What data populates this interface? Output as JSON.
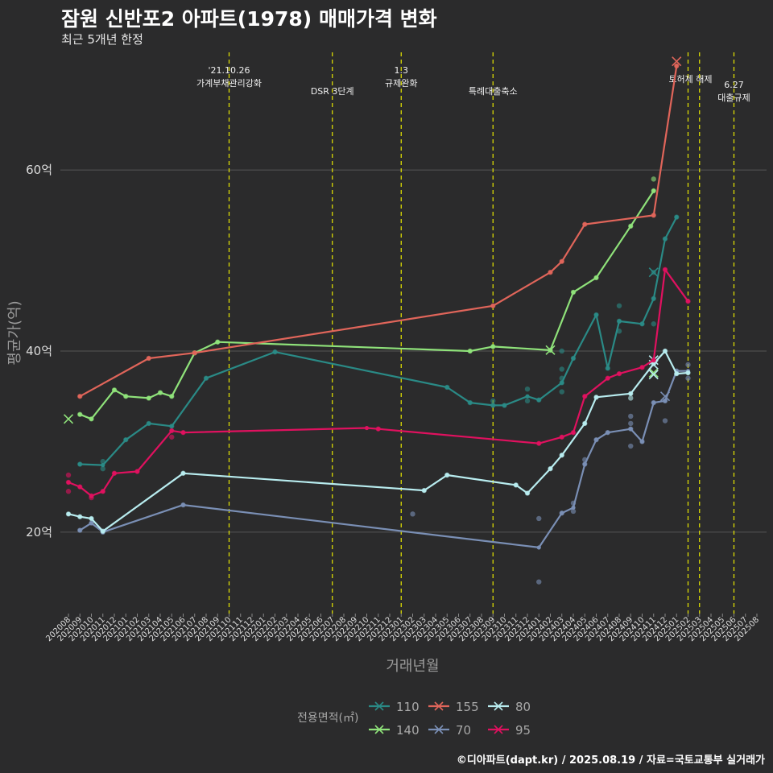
{
  "header": {
    "title": "잠원 신반포2 아파트(1978) 매매가격 변화",
    "subtitle": "최근 5개년 한정"
  },
  "footer": {
    "credit": "©디아파트(dapt.kr) / 2025.08.19 / 자료=국토교통부 실거래가"
  },
  "colors": {
    "background": "#2b2b2c",
    "grid": "#555555",
    "event_line": "#e8e800",
    "s110": "#2a8a86",
    "s140": "#8fe27a",
    "s155": "#e0655a",
    "s70": "#7a8fb5",
    "s80": "#b8ecef",
    "s95": "#e0115f"
  },
  "chart_data": {
    "type": "line",
    "title": "잠원 신반포2 아파트(1978) 매매가격 변화",
    "subtitle": "최근 5개년 한정",
    "xlabel": "거래년월",
    "ylabel": "평균가(억)",
    "categories": [
      "202008",
      "202009",
      "202010",
      "202011",
      "202012",
      "202101",
      "202102",
      "202103",
      "202104",
      "202105",
      "202106",
      "202107",
      "202108",
      "202109",
      "202110",
      "202111",
      "202112",
      "202201",
      "202202",
      "202203",
      "202204",
      "202205",
      "202206",
      "202207",
      "202208",
      "202209",
      "202210",
      "202211",
      "202212",
      "202301",
      "202302",
      "202303",
      "202304",
      "202305",
      "202306",
      "202307",
      "202308",
      "202309",
      "202310",
      "202311",
      "202312",
      "202401",
      "202402",
      "202403",
      "202404",
      "202405",
      "202406",
      "202407",
      "202408",
      "202409",
      "202410",
      "202411",
      "202412",
      "202501",
      "202502",
      "202503",
      "202504",
      "202505",
      "202506",
      "202507",
      "202508"
    ],
    "yticks": [
      {
        "value": 20,
        "label": "20억"
      },
      {
        "value": 40,
        "label": "40억"
      },
      {
        "value": 60,
        "label": "60억"
      }
    ],
    "ylim": [
      11,
      73
    ],
    "grid": true,
    "legend": {
      "title": "전용면적(㎡)",
      "position": "bottom"
    },
    "events": [
      {
        "x": "202110",
        "lines": [
          "'21.10.26",
          "가계부채관리강화"
        ]
      },
      {
        "x": "202207",
        "lines": [
          "DSR 3단계"
        ]
      },
      {
        "x": "202301",
        "lines": [
          "1.3",
          "규제완화"
        ]
      },
      {
        "x": "202309",
        "lines": [
          "특례대출축소"
        ]
      },
      {
        "x": "202502",
        "lines": [
          "토허제 해제"
        ]
      },
      {
        "x": "202503",
        "lines": []
      },
      {
        "x": "202506",
        "lines": [
          "6.27",
          "대출규제"
        ]
      }
    ],
    "series": [
      {
        "name": "110",
        "color_key": "s110",
        "values": [
          [
            "202009",
            27.5
          ],
          [
            "202011",
            27.4
          ],
          [
            "202101",
            30.2
          ],
          [
            "202103",
            32.0
          ],
          [
            "202105",
            31.7
          ],
          [
            "202108",
            37.0
          ],
          [
            "202202",
            39.9
          ],
          [
            "202305",
            36.0
          ],
          [
            "202307",
            34.3
          ],
          [
            "202309",
            34.0
          ],
          [
            "202310",
            34.0
          ],
          [
            "202312",
            35.0
          ],
          [
            "202401",
            34.6
          ],
          [
            "202403",
            36.5
          ],
          [
            "202404",
            39.2
          ],
          [
            "202406",
            44.0
          ],
          [
            "202407",
            38.1
          ],
          [
            "202408",
            43.3
          ],
          [
            "202410",
            43.0
          ],
          [
            "202411",
            45.8
          ],
          [
            "202412",
            52.4
          ],
          [
            "202501",
            54.8
          ]
        ],
        "points": [
          [
            "202009",
            27.5
          ],
          [
            "202011",
            27.0
          ],
          [
            "202011",
            27.8
          ],
          [
            "202101",
            30.2
          ],
          [
            "202103",
            32.0
          ],
          [
            "202105",
            31.7
          ],
          [
            "202108",
            37.0
          ],
          [
            "202202",
            39.9
          ],
          [
            "202305",
            36.0
          ],
          [
            "202307",
            34.3
          ],
          [
            "202309",
            34.0
          ],
          [
            "202309",
            34.5
          ],
          [
            "202310",
            34.0
          ],
          [
            "202312",
            34.5
          ],
          [
            "202312",
            35.8
          ],
          [
            "202401",
            34.6
          ],
          [
            "202403",
            36.5
          ],
          [
            "202403",
            38.0
          ],
          [
            "202403",
            40.0
          ],
          [
            "202403",
            35.5
          ],
          [
            "202403",
            37.0
          ],
          [
            "202404",
            39.2
          ],
          [
            "202406",
            44.0
          ],
          [
            "202407",
            38.1
          ],
          [
            "202408",
            43.3
          ],
          [
            "202408",
            42.2
          ],
          [
            "202408",
            45.0
          ],
          [
            "202410",
            43.0
          ],
          [
            "202411",
            45.8
          ],
          [
            "202411",
            48.7
          ],
          [
            "202411",
            43.0
          ],
          [
            "202412",
            52.4
          ],
          [
            "202501",
            54.8
          ]
        ],
        "markers_x": [
          [
            "202411",
            48.7
          ]
        ]
      },
      {
        "name": "140",
        "color_key": "s140",
        "values": [
          [
            "202009",
            33.0
          ],
          [
            "202010",
            32.5
          ],
          [
            "202012",
            35.7
          ],
          [
            "202101",
            35.0
          ],
          [
            "202103",
            34.8
          ],
          [
            "202104",
            35.4
          ],
          [
            "202105",
            35.0
          ],
          [
            "202107",
            39.8
          ],
          [
            "202109",
            41.0
          ],
          [
            "202307",
            40.0
          ],
          [
            "202309",
            40.5
          ],
          [
            "202402",
            40.1
          ],
          [
            "202404",
            46.5
          ],
          [
            "202406",
            48.1
          ],
          [
            "202409",
            53.8
          ],
          [
            "202411",
            57.7
          ]
        ],
        "points": [
          [
            "202009",
            33.0
          ],
          [
            "202010",
            32.5
          ],
          [
            "202012",
            35.7
          ],
          [
            "202101",
            35.0
          ],
          [
            "202103",
            34.8
          ],
          [
            "202104",
            35.4
          ],
          [
            "202105",
            35.0
          ],
          [
            "202107",
            39.8
          ],
          [
            "202109",
            41.0
          ],
          [
            "202307",
            40.0
          ],
          [
            "202309",
            40.5
          ],
          [
            "202402",
            40.1
          ],
          [
            "202404",
            46.5
          ],
          [
            "202406",
            48.1
          ],
          [
            "202409",
            53.8
          ],
          [
            "202411",
            57.7
          ],
          [
            "202411",
            59.0
          ]
        ],
        "markers_x": [
          [
            "202008",
            32.5
          ],
          [
            "202402",
            40.1
          ],
          [
            "202411",
            37.6
          ]
        ]
      },
      {
        "name": "155",
        "color_key": "s155",
        "values": [
          [
            "202009",
            35.0
          ],
          [
            "202103",
            39.2
          ],
          [
            "202107",
            39.8
          ],
          [
            "202309",
            45.0
          ],
          [
            "202402",
            48.7
          ],
          [
            "202403",
            49.9
          ],
          [
            "202405",
            54.0
          ],
          [
            "202411",
            55.0
          ],
          [
            "202501",
            71.5
          ]
        ],
        "points": [
          [
            "202009",
            35.0
          ],
          [
            "202103",
            39.2
          ],
          [
            "202107",
            39.8
          ],
          [
            "202309",
            45.0
          ],
          [
            "202402",
            48.7
          ],
          [
            "202403",
            49.9
          ],
          [
            "202405",
            54.0
          ],
          [
            "202411",
            55.0
          ],
          [
            "202501",
            71.5
          ]
        ],
        "markers_x": [
          [
            "202501",
            72.0
          ]
        ]
      },
      {
        "name": "70",
        "color_key": "s70",
        "values": [
          [
            "202009",
            20.2
          ],
          [
            "202010",
            21.0
          ],
          [
            "202011",
            20.0
          ],
          [
            "202106",
            23.0
          ],
          [
            "202401",
            18.3
          ],
          [
            "202403",
            22.1
          ],
          [
            "202404",
            22.7
          ],
          [
            "202405",
            27.5
          ],
          [
            "202406",
            30.2
          ],
          [
            "202407",
            31.0
          ],
          [
            "202409",
            31.4
          ],
          [
            "202410",
            30.0
          ],
          [
            "202411",
            34.3
          ],
          [
            "202412",
            34.5
          ],
          [
            "202501",
            37.8
          ],
          [
            "202502",
            37.8
          ]
        ],
        "points": [
          [
            "202009",
            20.2
          ],
          [
            "202010",
            21.0
          ],
          [
            "202011",
            20.0
          ],
          [
            "202106",
            23.0
          ],
          [
            "202302",
            22.0
          ],
          [
            "202401",
            21.5
          ],
          [
            "202401",
            14.5
          ],
          [
            "202403",
            22.1
          ],
          [
            "202404",
            22.3
          ],
          [
            "202404",
            23.2
          ],
          [
            "202405",
            27.5
          ],
          [
            "202405",
            28.0
          ],
          [
            "202406",
            30.2
          ],
          [
            "202407",
            31.0
          ],
          [
            "202409",
            31.4
          ],
          [
            "202409",
            32.8
          ],
          [
            "202409",
            32.0
          ],
          [
            "202409",
            29.5
          ],
          [
            "202410",
            30.0
          ],
          [
            "202411",
            34.3
          ],
          [
            "202412",
            34.5
          ],
          [
            "202412",
            32.3
          ],
          [
            "202501",
            37.8
          ],
          [
            "202502",
            37.0
          ],
          [
            "202502",
            38.5
          ]
        ],
        "markers_x": [
          [
            "202412",
            35.0
          ]
        ]
      },
      {
        "name": "80",
        "color_key": "s80",
        "values": [
          [
            "202008",
            22.0
          ],
          [
            "202009",
            21.7
          ],
          [
            "202010",
            21.5
          ],
          [
            "202011",
            20.1
          ],
          [
            "202106",
            26.5
          ],
          [
            "202303",
            24.6
          ],
          [
            "202305",
            26.3
          ],
          [
            "202311",
            25.2
          ],
          [
            "202312",
            24.3
          ],
          [
            "202402",
            27.0
          ],
          [
            "202403",
            28.5
          ],
          [
            "202405",
            32.0
          ],
          [
            "202406",
            34.9
          ],
          [
            "202409",
            35.3
          ],
          [
            "202411",
            38.6
          ],
          [
            "202412",
            40.0
          ],
          [
            "202501",
            37.5
          ],
          [
            "202502",
            37.6
          ]
        ],
        "points": [
          [
            "202008",
            22.0
          ],
          [
            "202009",
            21.7
          ],
          [
            "202010",
            21.5
          ],
          [
            "202011",
            20.1
          ],
          [
            "202106",
            26.5
          ],
          [
            "202303",
            24.6
          ],
          [
            "202305",
            26.3
          ],
          [
            "202311",
            25.2
          ],
          [
            "202312",
            24.3
          ],
          [
            "202402",
            27.0
          ],
          [
            "202403",
            28.5
          ],
          [
            "202405",
            32.0
          ],
          [
            "202406",
            34.9
          ],
          [
            "202409",
            35.3
          ],
          [
            "202409",
            34.8
          ],
          [
            "202411",
            38.6
          ],
          [
            "202412",
            40.0
          ],
          [
            "202501",
            37.5
          ],
          [
            "202502",
            37.6
          ]
        ],
        "markers_x": [
          [
            "202411",
            37.4
          ],
          [
            "202411",
            38.5
          ],
          [
            "202411",
            39.0
          ]
        ]
      },
      {
        "name": "95",
        "color_key": "s95",
        "values": [
          [
            "202008",
            25.5
          ],
          [
            "202009",
            25.0
          ],
          [
            "202010",
            24.0
          ],
          [
            "202011",
            24.5
          ],
          [
            "202012",
            26.5
          ],
          [
            "202102",
            26.7
          ],
          [
            "202105",
            31.2
          ],
          [
            "202106",
            31.0
          ],
          [
            "202210",
            31.5
          ],
          [
            "202211",
            31.4
          ],
          [
            "202401",
            29.8
          ],
          [
            "202403",
            30.5
          ],
          [
            "202404",
            31.0
          ],
          [
            "202405",
            35.0
          ],
          [
            "202407",
            37.0
          ],
          [
            "202408",
            37.5
          ],
          [
            "202410",
            38.2
          ],
          [
            "202411",
            39.0
          ],
          [
            "202412",
            49.0
          ],
          [
            "202502",
            45.5
          ]
        ],
        "points": [
          [
            "202008",
            26.3
          ],
          [
            "202008",
            25.5
          ],
          [
            "202008",
            24.5
          ],
          [
            "202009",
            25.0
          ],
          [
            "202010",
            24.0
          ],
          [
            "202010",
            23.8
          ],
          [
            "202011",
            24.5
          ],
          [
            "202012",
            26.5
          ],
          [
            "202102",
            26.7
          ],
          [
            "202105",
            31.2
          ],
          [
            "202105",
            30.5
          ],
          [
            "202106",
            31.0
          ],
          [
            "202211",
            31.4
          ],
          [
            "202401",
            29.8
          ],
          [
            "202403",
            30.5
          ],
          [
            "202404",
            31.0
          ],
          [
            "202405",
            35.0
          ],
          [
            "202407",
            37.0
          ],
          [
            "202408",
            37.5
          ],
          [
            "202410",
            38.2
          ],
          [
            "202411",
            39.0
          ],
          [
            "202412",
            49.0
          ],
          [
            "202502",
            45.5
          ]
        ],
        "markers_x": []
      }
    ]
  }
}
